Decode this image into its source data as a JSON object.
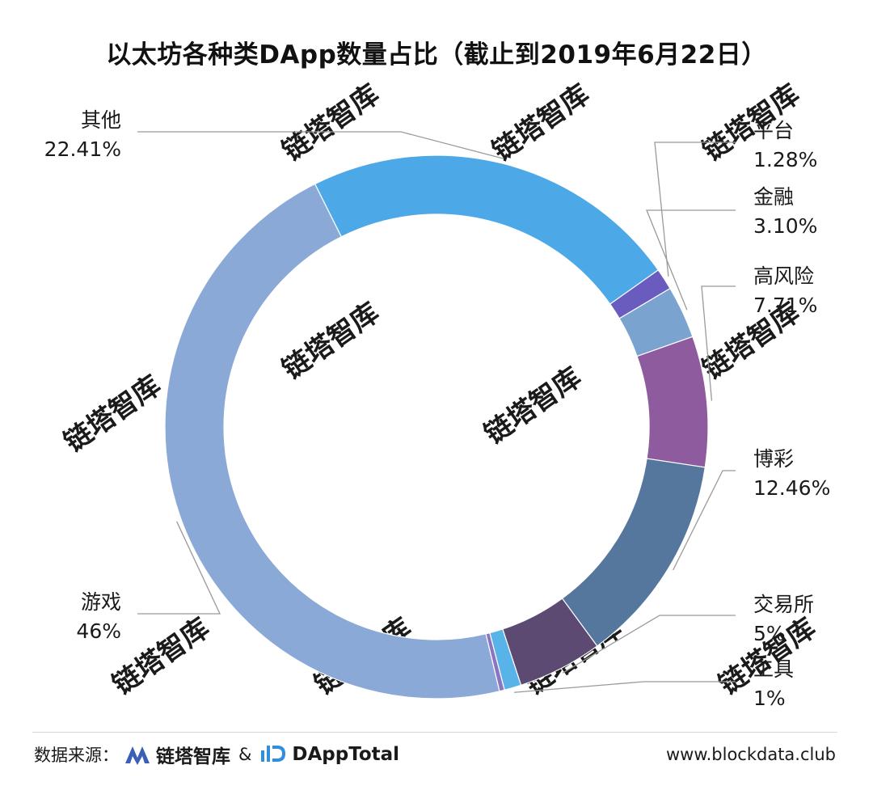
{
  "chart_data": {
    "type": "pie",
    "donut": true,
    "title": "以太坊各种类DApp数量占比（截止到2019年6月22日）",
    "slices": [
      {
        "label": "平台",
        "value": 1.28,
        "value_label": "1.28%",
        "color": "#6a5bbf"
      },
      {
        "label": "金融",
        "value": 3.1,
        "value_label": "3.10%",
        "color": "#7ba3cf"
      },
      {
        "label": "高风险",
        "value": 7.71,
        "value_label": "7.71%",
        "color": "#8f5b9f"
      },
      {
        "label": "博彩",
        "value": 12.46,
        "value_label": "12.46%",
        "color": "#55779d"
      },
      {
        "label": "交易所",
        "value": 5,
        "value_label": "5%",
        "color": "#5c4a72"
      },
      {
        "label": "工具",
        "value": 1,
        "value_label": "1%",
        "color": "#58b4e8"
      },
      {
        "label": "",
        "value": 0.3,
        "value_label": "",
        "color": "#8c74c4"
      },
      {
        "label": "游戏",
        "value": 46,
        "value_label": "46%",
        "color": "#8aa9d6"
      },
      {
        "label": "其他",
        "value": 22.41,
        "value_label": "22.41%",
        "color": "#4da8e8"
      }
    ],
    "legend": "none"
  },
  "watermark": {
    "text": "链塔智库"
  },
  "footer": {
    "source_prefix": "数据来源：",
    "logo1_text": "链塔智库",
    "amp": "&",
    "logo2_text": "DAppTotal",
    "url": "www.blockdata.club"
  },
  "colors": {
    "logo_blue": "#3b5fb8",
    "logo2_blue": "#2f8fdc",
    "watermark": "#dfe4ef",
    "leader_line": "#9a9a9a"
  }
}
